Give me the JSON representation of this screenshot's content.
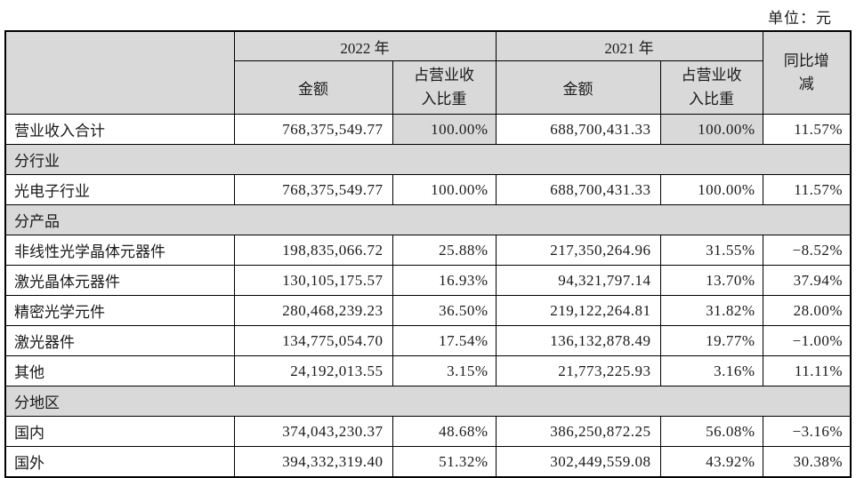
{
  "unit_label": "单位：元",
  "table": {
    "headers": {
      "year_2022": "2022 年",
      "year_2021": "2021 年",
      "amount": "金额",
      "pct_of_revenue": "占营业收入比重",
      "yoy_change": "同比增减"
    },
    "rows": [
      {
        "type": "data",
        "label": "营业收入合计",
        "amount_2022": "768,375,549.77",
        "pct_2022": "100.00%",
        "amount_2021": "688,700,431.33",
        "pct_2021": "100.00%",
        "yoy": "11.57%",
        "pct_shaded": true
      },
      {
        "type": "section",
        "label": "分行业"
      },
      {
        "type": "data",
        "label": "光电子行业",
        "amount_2022": "768,375,549.77",
        "pct_2022": "100.00%",
        "amount_2021": "688,700,431.33",
        "pct_2021": "100.00%",
        "yoy": "11.57%",
        "pct_shaded": false
      },
      {
        "type": "section",
        "label": "分产品"
      },
      {
        "type": "data",
        "label": "非线性光学晶体元器件",
        "amount_2022": "198,835,066.72",
        "pct_2022": "25.88%",
        "amount_2021": "217,350,264.96",
        "pct_2021": "31.55%",
        "yoy": "−8.52%",
        "pct_shaded": false
      },
      {
        "type": "data",
        "label": "激光晶体元器件",
        "amount_2022": "130,105,175.57",
        "pct_2022": "16.93%",
        "amount_2021": "94,321,797.14",
        "pct_2021": "13.70%",
        "yoy": "37.94%",
        "pct_shaded": false
      },
      {
        "type": "data",
        "label": "精密光学元件",
        "amount_2022": "280,468,239.23",
        "pct_2022": "36.50%",
        "amount_2021": "219,122,264.81",
        "pct_2021": "31.82%",
        "yoy": "28.00%",
        "pct_shaded": false
      },
      {
        "type": "data",
        "label": "激光器件",
        "amount_2022": "134,775,054.70",
        "pct_2022": "17.54%",
        "amount_2021": "136,132,878.49",
        "pct_2021": "19.77%",
        "yoy": "−1.00%",
        "pct_shaded": false
      },
      {
        "type": "data",
        "label": "其他",
        "amount_2022": "24,192,013.55",
        "pct_2022": "3.15%",
        "amount_2021": "21,773,225.93",
        "pct_2021": "3.16%",
        "yoy": "11.11%",
        "pct_shaded": false
      },
      {
        "type": "section",
        "label": "分地区"
      },
      {
        "type": "data",
        "label": "国内",
        "amount_2022": "374,043,230.37",
        "pct_2022": "48.68%",
        "amount_2021": "386,250,872.25",
        "pct_2021": "56.08%",
        "yoy": "−3.16%",
        "pct_shaded": false
      },
      {
        "type": "data",
        "label": "国外",
        "amount_2022": "394,332,319.40",
        "pct_2022": "51.32%",
        "amount_2021": "302,449,559.08",
        "pct_2021": "43.92%",
        "yoy": "30.38%",
        "pct_shaded": false
      }
    ]
  }
}
